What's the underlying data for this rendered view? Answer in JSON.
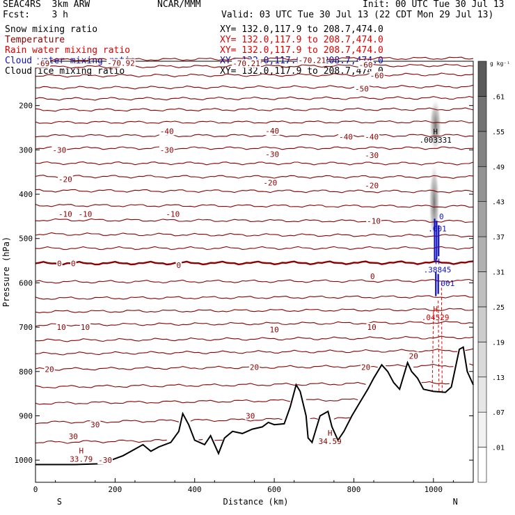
{
  "header": {
    "line1_left": "SEAC4RS  3km ARW",
    "line1_center": "NCAR/MMM",
    "line1_right": "Init: 00 UTC Tue 30 Jul 13",
    "line2_left": "Fcst:    3 h",
    "line2_right": "Valid: 03 UTC Tue 30 Jul 13 (22 CDT Mon 29 Jul 13)"
  },
  "fields": [
    {
      "name": "Snow mixing ratio",
      "color": "#000000",
      "xsect": "XY= 132.0,117.9 to 208.7,474.0"
    },
    {
      "name": "Temperature",
      "color": "#8b0000",
      "xsect": "XY= 132.0,117.9 to 208.7,474.0"
    },
    {
      "name": "Rain water mixing ratio",
      "color": "#e00000",
      "xsect": "XY= 132.0,117.9 to 208.7,474.0"
    },
    {
      "name": "Cloud water mixing ratio",
      "color": "#1010c0",
      "xsect": "XY= 132.0,117.9 to 208.7,474.0"
    },
    {
      "name": "Cloud ice mixing ratio",
      "color": "#000000",
      "xsect": "XY= 132.0,117.9 to 208.7,474.0"
    }
  ],
  "colorbar": {
    "unit": "g kg⁻¹",
    "ticks": [
      ".01",
      ".07",
      ".13",
      ".19",
      ".25",
      ".31",
      ".37",
      ".43",
      ".49",
      ".55",
      ".61"
    ],
    "shades": [
      "#ffffff",
      "#f2f2f2",
      "#e6e6e6",
      "#d9d9d9",
      "#cccccc",
      "#bfbfbf",
      "#b0b0b0",
      "#a2a2a2",
      "#939393",
      "#838383",
      "#737373",
      "#5a5a5a"
    ]
  },
  "chart_data": {
    "type": "cross-section",
    "xlabel": "Distance (km)",
    "ylabel": "Pressure (hPa)",
    "xlim": [
      0,
      1100
    ],
    "ylim_hpa": [
      1050,
      100
    ],
    "x_ticks": [
      0,
      200,
      400,
      600,
      800,
      1000
    ],
    "y_ticks": [
      200,
      300,
      400,
      500,
      600,
      700,
      800,
      900,
      1000
    ],
    "end_labels": {
      "left": "S",
      "right": "N"
    },
    "temperature_contours_c": [
      -70,
      -60,
      -50,
      -40,
      -30,
      -20,
      -10,
      0,
      10,
      20,
      30
    ],
    "temperature_labels": [
      {
        "text": "-40",
        "x": 330,
        "p": 258
      },
      {
        "text": "-40",
        "x": 595,
        "p": 257
      },
      {
        "text": "-40",
        "x": 780,
        "p": 270
      },
      {
        "text": "-40",
        "x": 845,
        "p": 270
      },
      {
        "text": "-30",
        "x": 60,
        "p": 300
      },
      {
        "text": "-30",
        "x": 330,
        "p": 300
      },
      {
        "text": "-30",
        "x": 595,
        "p": 310
      },
      {
        "text": "-30",
        "x": 845,
        "p": 312
      },
      {
        "text": "-20",
        "x": 75,
        "p": 366
      },
      {
        "text": "-20",
        "x": 590,
        "p": 374
      },
      {
        "text": "-20",
        "x": 845,
        "p": 380
      },
      {
        "text": "-10",
        "x": 75,
        "p": 445
      },
      {
        "text": "-10",
        "x": 125,
        "p": 445
      },
      {
        "text": "-10",
        "x": 345,
        "p": 445
      },
      {
        "text": "-10",
        "x": 850,
        "p": 460
      },
      {
        "text": "0",
        "x": 60,
        "p": 556
      },
      {
        "text": "0",
        "x": 95,
        "p": 556
      },
      {
        "text": "0",
        "x": 360,
        "p": 560
      },
      {
        "text": "0",
        "x": 847,
        "p": 585
      },
      {
        "text": "10",
        "x": 65,
        "p": 700
      },
      {
        "text": "10",
        "x": 125,
        "p": 700
      },
      {
        "text": "10",
        "x": 600,
        "p": 705
      },
      {
        "text": "10",
        "x": 845,
        "p": 700
      },
      {
        "text": "20",
        "x": 35,
        "p": 795
      },
      {
        "text": "20",
        "x": 550,
        "p": 790
      },
      {
        "text": "20",
        "x": 830,
        "p": 790
      },
      {
        "text": "20",
        "x": 950,
        "p": 765
      },
      {
        "text": "30",
        "x": 150,
        "p": 920
      },
      {
        "text": "30",
        "x": 95,
        "p": 946
      },
      {
        "text": "30",
        "x": 540,
        "p": 900
      },
      {
        "text": "-30",
        "x": 175,
        "p": 1000
      },
      {
        "text": "-50",
        "x": 820,
        "p": 162
      },
      {
        "text": "-60",
        "x": 858,
        "p": 132
      },
      {
        "text": "-60",
        "x": 830,
        "p": 108
      },
      {
        "text": "-70.21",
        "x": 695,
        "p": 98
      },
      {
        "text": "-70.21",
        "x": 530,
        "p": 105
      },
      {
        "text": "-70.92",
        "x": 215,
        "p": 104
      },
      {
        "text": "-69",
        "x": 18,
        "p": 105
      }
    ],
    "extrema": [
      {
        "type": "H",
        "value": "33.79",
        "x": 115,
        "p": 985,
        "color": "#8b0000"
      },
      {
        "type": "H",
        "value": "34.59",
        "x": 740,
        "p": 945,
        "color": "#8b0000"
      },
      {
        "type": "H",
        "value": ".04529",
        "x": 1005,
        "p": 665,
        "color": "#e00000"
      },
      {
        "type": "H",
        "value": ".38845",
        "x": 1010,
        "p": 558,
        "color": "#1010c0"
      },
      {
        "type": "H",
        "value": ".003331",
        "x": 1005,
        "p": 265,
        "color": "#000000"
      }
    ],
    "cloud_water_labels": [
      {
        "text": "0",
        "x": 1020,
        "p": 450
      },
      {
        "text": ".001",
        "x": 1010,
        "p": 478
      },
      {
        "text": ".001",
        "x": 1030,
        "p": 601
      }
    ],
    "terrain_pressure_hpa": [
      [
        0,
        1010
      ],
      [
        100,
        1010
      ],
      [
        170,
        1008
      ],
      [
        190,
        1000
      ],
      [
        220,
        990
      ],
      [
        250,
        975
      ],
      [
        270,
        965
      ],
      [
        290,
        980
      ],
      [
        310,
        970
      ],
      [
        340,
        960
      ],
      [
        360,
        935
      ],
      [
        370,
        895
      ],
      [
        385,
        920
      ],
      [
        400,
        955
      ],
      [
        425,
        965
      ],
      [
        440,
        945
      ],
      [
        460,
        985
      ],
      [
        475,
        950
      ],
      [
        495,
        935
      ],
      [
        520,
        940
      ],
      [
        545,
        930
      ],
      [
        570,
        925
      ],
      [
        585,
        915
      ],
      [
        600,
        920
      ],
      [
        625,
        918
      ],
      [
        640,
        880
      ],
      [
        655,
        830
      ],
      [
        665,
        845
      ],
      [
        680,
        900
      ],
      [
        685,
        950
      ],
      [
        695,
        960
      ],
      [
        705,
        930
      ],
      [
        715,
        900
      ],
      [
        735,
        890
      ],
      [
        745,
        925
      ],
      [
        760,
        955
      ],
      [
        775,
        935
      ],
      [
        795,
        900
      ],
      [
        815,
        870
      ],
      [
        835,
        840
      ],
      [
        850,
        815
      ],
      [
        870,
        785
      ],
      [
        885,
        800
      ],
      [
        900,
        825
      ],
      [
        915,
        840
      ],
      [
        935,
        780
      ],
      [
        945,
        800
      ],
      [
        960,
        815
      ],
      [
        975,
        840
      ],
      [
        1000,
        845
      ],
      [
        1030,
        847
      ],
      [
        1045,
        835
      ],
      [
        1065,
        750
      ],
      [
        1075,
        745
      ],
      [
        1085,
        800
      ],
      [
        1100,
        830
      ]
    ]
  }
}
